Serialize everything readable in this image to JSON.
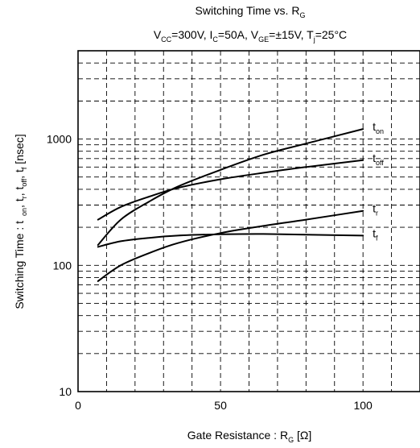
{
  "chart_data": {
    "type": "line",
    "title": "Switching Time vs. R_G",
    "subtitle": "V_CC=300V, I_C=50A, V_GE=±15V, T_j=25°C",
    "xlabel": "Gate Resistance : R_G [Ω]",
    "ylabel": "Switching Time : t_on, t_r, t_off, t_f [nsec]",
    "xlim": [
      0,
      120
    ],
    "ylim": [
      10,
      5000
    ],
    "yscale": "log",
    "grid": true,
    "x_ticks": [
      0,
      50,
      100
    ],
    "y_ticks": [
      10,
      100,
      1000
    ],
    "series": [
      {
        "name": "t_on",
        "x": [
          7,
          15,
          25,
          35,
          50,
          65,
          80,
          100
        ],
        "y": [
          145,
          230,
          320,
          420,
          570,
          750,
          920,
          1200
        ]
      },
      {
        "name": "t_off",
        "x": [
          7,
          15,
          25,
          35,
          50,
          65,
          80,
          100
        ],
        "y": [
          230,
          290,
          350,
          410,
          480,
          540,
          600,
          680
        ]
      },
      {
        "name": "t_r",
        "x": [
          7,
          15,
          25,
          35,
          50,
          65,
          80,
          100
        ],
        "y": [
          75,
          100,
          125,
          150,
          180,
          205,
          230,
          270
        ]
      },
      {
        "name": "t_f",
        "x": [
          7,
          15,
          25,
          35,
          50,
          65,
          80,
          100
        ],
        "y": [
          140,
          155,
          165,
          172,
          176,
          177,
          175,
          172
        ]
      }
    ]
  }
}
